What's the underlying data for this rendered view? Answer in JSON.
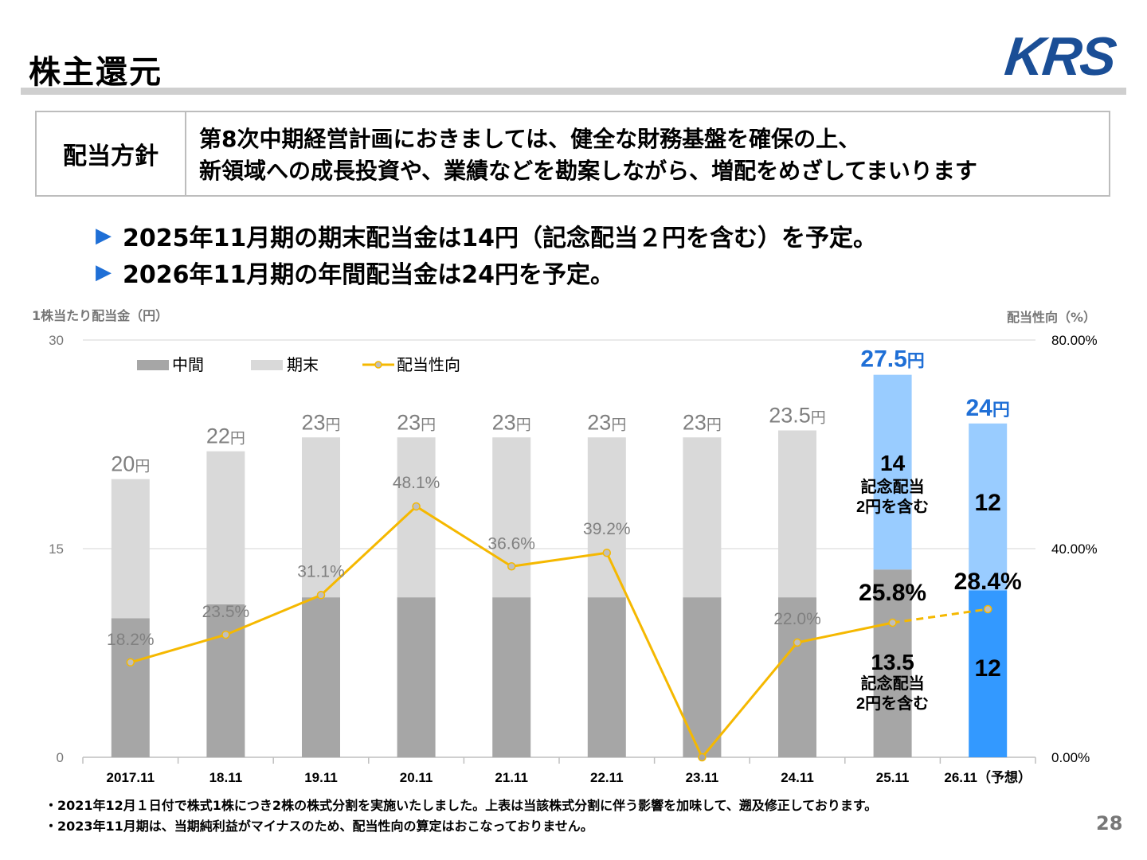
{
  "header": {
    "title": "株主還元",
    "logo": "KRS"
  },
  "policy": {
    "label": "配当方針",
    "line1": "第8次中期経営計画におきましては、健全な財務基盤を確保の上、",
    "line2": "新領域への成長投資や、業績などを勘案しながら、増配をめざしてまいります"
  },
  "bullets": [
    "2025年11月期の期末配当金は14円（記念配当２円を含む）を予定。",
    "2026年11月期の年間配当金は24円を予定。"
  ],
  "axes": {
    "left_caption": "1株当たり配当金（円）",
    "right_caption": "配当性向（%）",
    "left_ticks": [
      "30",
      "15",
      "0"
    ],
    "right_ticks": [
      "80.00%",
      "40.00%",
      "0.00%"
    ]
  },
  "notes": [
    "・2021年12月１日付で株式1株につき2株の株式分割を実施いたしました。上表は当該株式分割に伴う影響を加味して、遡及修正しております。",
    "・2023年11月期は、当期純利益がマイナスのため、配当性向の算定はおこなっておりません。"
  ],
  "page_number": "28",
  "colors": {
    "interim": "#a6a6a6",
    "year_end": "#d9d9d9",
    "ratio_line": "#f5b800",
    "forecast_light": "#99ccff",
    "forecast_dark": "#3399ff",
    "highlight_text": "#1f6fd6"
  },
  "chart_data": {
    "type": "bar",
    "stacked": true,
    "categories": [
      "2017.11",
      "18.11",
      "19.11",
      "20.11",
      "21.11",
      "22.11",
      "23.11",
      "24.11",
      "25.11",
      "26.11（予想）"
    ],
    "series": [
      {
        "name": "中間",
        "values": [
          10,
          11,
          11.5,
          11.5,
          11.5,
          11.5,
          11.5,
          11.5,
          13.5,
          12
        ]
      },
      {
        "name": "期末",
        "values": [
          10,
          11,
          11.5,
          11.5,
          11.5,
          11.5,
          11.5,
          12,
          14,
          12
        ]
      }
    ],
    "totals": [
      20,
      22,
      23,
      23,
      23,
      23,
      23,
      23.5,
      27.5,
      24
    ],
    "total_labels": [
      "20",
      "22",
      "23",
      "23",
      "23",
      "23",
      "23",
      "23.5",
      "27.5",
      "24"
    ],
    "total_unit": "円",
    "line": {
      "name": "配当性向",
      "values": [
        18.2,
        23.5,
        31.1,
        48.1,
        36.6,
        39.2,
        0,
        22.0,
        25.8,
        28.4
      ],
      "labels": [
        "18.2%",
        "23.5%",
        "31.1%",
        "48.1%",
        "36.6%",
        "39.2%",
        "",
        "22.0%",
        "25.8%",
        "28.4%"
      ],
      "forecast_from_index": 8
    },
    "segment_labels": {
      "25.11": {
        "interim": "13.5",
        "year_end": "14",
        "note": "記念配当\n2円を含む"
      },
      "26.11": {
        "interim": "12",
        "year_end": "12"
      }
    },
    "ylim": [
      0,
      30
    ],
    "y2lim": [
      0,
      80
    ],
    "legend_position": "top-left",
    "grid": true
  }
}
